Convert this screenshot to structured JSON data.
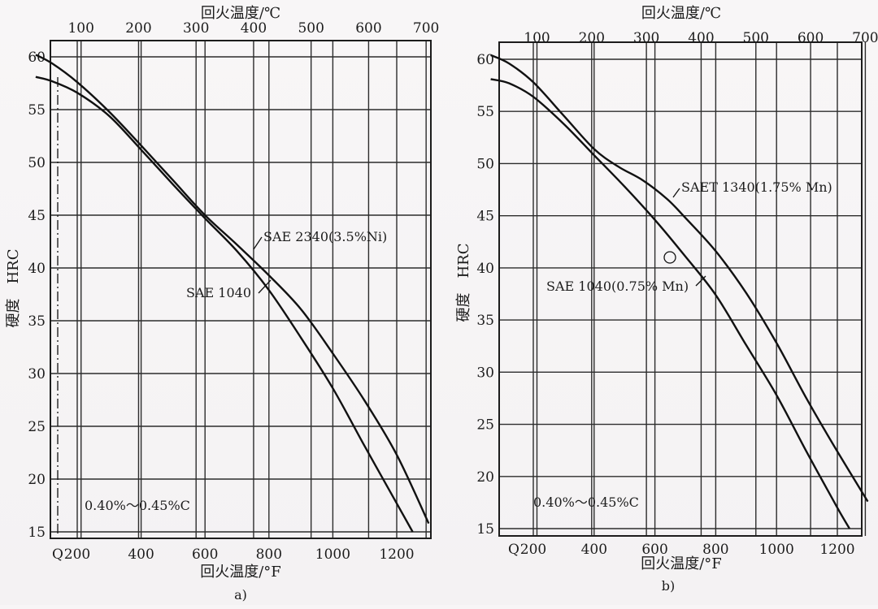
{
  "chart_data": [
    {
      "type": "line",
      "panel_label": "a)",
      "top_axis_label": "回火温度/℃",
      "xlabel": "回火温度/°F",
      "ylabel": "硬度　HRC",
      "x_scale": "°F",
      "xlim": [
        60,
        1300
      ],
      "ylim": [
        15,
        60
      ],
      "x_ticks": [
        200,
        400,
        600,
        800,
        1000,
        1200
      ],
      "x_tick_labels": [
        "200",
        "400",
        "600",
        "800",
        "1000",
        "1200"
      ],
      "x_first_label": "Q",
      "top_ticks_c": [
        100,
        200,
        300,
        400,
        500,
        600,
        700
      ],
      "y_ticks": [
        15,
        20,
        25,
        30,
        35,
        40,
        45,
        50,
        55,
        60
      ],
      "grid": true,
      "note": "0.40%～0.45%C",
      "series": [
        {
          "name": "SAE 2340(3.5%Ni)",
          "x": [
            70,
            120,
            200,
            300,
            400,
            500,
            600,
            700,
            800,
            900,
            1000,
            1100,
            1200,
            1300
          ],
          "y": [
            60.2,
            59.4,
            57.6,
            54.8,
            51.6,
            48.3,
            45.0,
            42.2,
            39.3,
            36.1,
            31.9,
            27.4,
            22.3,
            15.8
          ]
        },
        {
          "name": "SAE 1040",
          "x": [
            70,
            120,
            200,
            300,
            400,
            500,
            600,
            700,
            800,
            900,
            1000,
            1100,
            1200,
            1250
          ],
          "y": [
            58.1,
            57.7,
            56.6,
            54.4,
            51.2,
            47.9,
            44.7,
            41.6,
            37.9,
            33.4,
            28.6,
            23.1,
            17.7,
            15.0
          ]
        }
      ]
    },
    {
      "type": "line",
      "panel_label": "b)",
      "top_axis_label": "回火温度/℃",
      "xlabel": "回火温度/°F",
      "ylabel": "硬度　HRC",
      "x_scale": "°F",
      "xlim": [
        60,
        1300
      ],
      "ylim": [
        15,
        60
      ],
      "x_ticks": [
        200,
        400,
        600,
        800,
        1000,
        1200
      ],
      "x_tick_labels": [
        "200",
        "400",
        "600",
        "800",
        "1000",
        "1200"
      ],
      "x_first_label": "Q",
      "top_ticks_c": [
        100,
        200,
        300,
        400,
        500,
        600,
        700
      ],
      "y_ticks": [
        15,
        20,
        25,
        30,
        35,
        40,
        45,
        50,
        55,
        60
      ],
      "grid": true,
      "note": "0.40%～0.45%C",
      "series": [
        {
          "name": "SAET 1340(1.75% Mn)",
          "x": [
            60,
            120,
            200,
            300,
            400,
            480,
            560,
            640,
            700,
            800,
            900,
            1000,
            1100,
            1200,
            1300
          ],
          "y": [
            60.4,
            59.6,
            57.8,
            54.6,
            51.4,
            49.7,
            48.4,
            46.6,
            44.8,
            41.6,
            37.6,
            32.8,
            27.4,
            22.4,
            17.6
          ]
        },
        {
          "name": "SAE 1040(0.75% Mn)",
          "x": [
            60,
            120,
            200,
            300,
            400,
            500,
            600,
            700,
            800,
            900,
            1000,
            1100,
            1200,
            1240
          ],
          "y": [
            58.1,
            57.7,
            56.4,
            53.8,
            50.8,
            47.8,
            44.6,
            41.1,
            37.4,
            32.6,
            27.8,
            22.3,
            17.0,
            15.0
          ]
        }
      ]
    }
  ]
}
